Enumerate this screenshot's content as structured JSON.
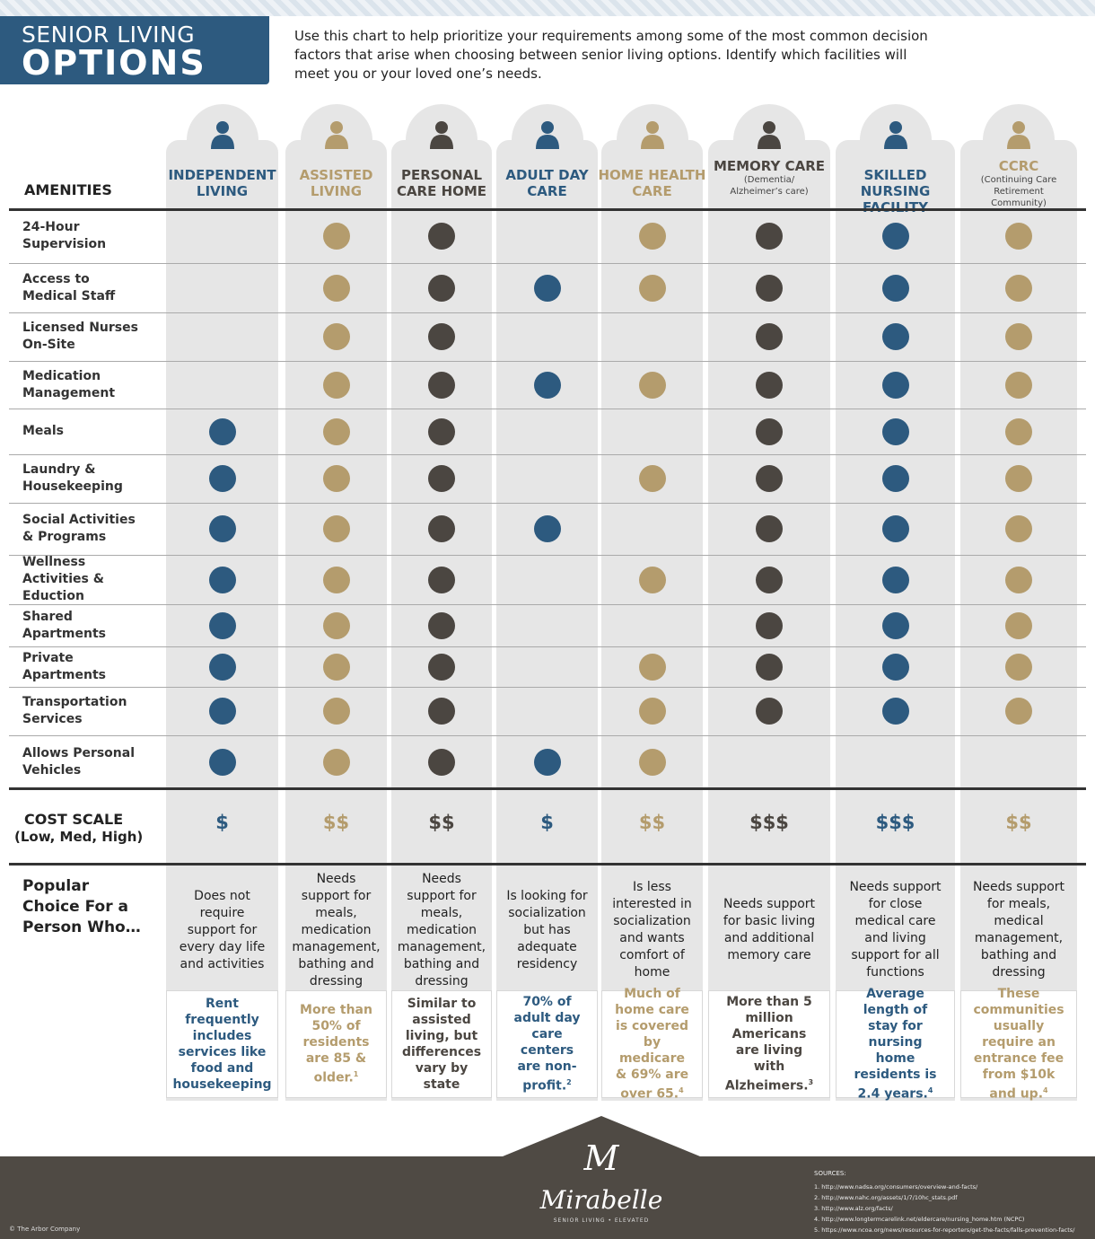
{
  "header": {
    "title_line1": "SENIOR LIVING",
    "title_line2": "OPTIONS",
    "intro": "Use this chart to help prioritize your requirements among some of the most common decision factors that arise when choosing between senior living options. Identify which facilities will meet you or your loved one’s needs."
  },
  "table": {
    "amenities_heading": "AMENITIES",
    "cost_heading_line1": "COST SCALE",
    "cost_heading_line2": "(Low, Med, High)",
    "popular_heading": "Popular Choice For a Person Who…",
    "columns": [
      {
        "name": "INDEPENDENT LIVING",
        "color": "#2d5a7f",
        "cost": "$",
        "popular": "Does not require support for every day life and activities",
        "fact": "Rent frequently includes services like food and housekeeping"
      },
      {
        "name": "ASSISTED LIVING",
        "color": "#b49c6d",
        "cost": "$$",
        "popular": "Needs support for meals, medication management, bathing and dressing",
        "fact": "More than 50% of residents are 85 & older.",
        "fact_note": "1"
      },
      {
        "name": "PERSONAL CARE HOME",
        "color": "#4b4641",
        "cost": "$$",
        "popular": "Needs support for meals, medication management, bathing and dressing",
        "fact": "Similar to assisted living, but differences vary by state"
      },
      {
        "name": "ADULT DAY CARE",
        "color": "#2d5a7f",
        "cost": "$",
        "popular": "Is looking for socialization but has adequate residency",
        "fact": "70% of adult day care centers are non-profit.",
        "fact_note": "2"
      },
      {
        "name": "HOME HEALTH CARE",
        "color": "#b49c6d",
        "cost": "$$",
        "popular": "Is less interested in socialization and wants comfort of home",
        "fact": "Much of home care is covered by medicare & 69% are over 65.",
        "fact_note": "4"
      },
      {
        "name": "MEMORY CARE",
        "note": "(Dementia/ Alzheimer’s care)",
        "color": "#4b4641",
        "cost": "$$$",
        "popular": "Needs support for basic living and additional memory care",
        "fact": "More than 5 million Americans are living with Alzheimers.",
        "fact_note": "3"
      },
      {
        "name": "SKILLED NURSING FACILITY",
        "color": "#2d5a7f",
        "cost": "$$$",
        "popular": "Needs support for close medical care and living support for all functions",
        "fact": "Average length of stay for nursing home residents is 2.4 years.",
        "fact_note": "4"
      },
      {
        "name": "CCRC",
        "note": "(Continuing Care Retirement Community)",
        "color": "#b49c6d",
        "cost": "$$",
        "popular": "Needs support for meals, medical management, bathing and dressing",
        "fact": "These communities usually require an entrance fee from $10k and up.",
        "fact_note": "4"
      }
    ],
    "rows": [
      {
        "label": "24-Hour Supervision",
        "marks": [
          false,
          true,
          true,
          false,
          true,
          true,
          true,
          true
        ]
      },
      {
        "label": "Access to Medical Staff",
        "marks": [
          false,
          true,
          true,
          true,
          true,
          true,
          true,
          true
        ]
      },
      {
        "label": "Licensed Nurses On-Site",
        "marks": [
          false,
          true,
          true,
          false,
          false,
          true,
          true,
          true
        ]
      },
      {
        "label": "Medication Management",
        "marks": [
          false,
          true,
          true,
          true,
          true,
          true,
          true,
          true
        ]
      },
      {
        "label": "Meals",
        "marks": [
          true,
          true,
          true,
          false,
          false,
          true,
          true,
          true
        ]
      },
      {
        "label": "Laundry & Housekeeping",
        "marks": [
          true,
          true,
          true,
          false,
          true,
          true,
          true,
          true
        ]
      },
      {
        "label": "Social Activities & Programs",
        "marks": [
          true,
          true,
          true,
          true,
          false,
          true,
          true,
          true
        ]
      },
      {
        "label": "Wellness Activities & Eduction",
        "marks": [
          true,
          true,
          true,
          false,
          true,
          true,
          true,
          true
        ]
      },
      {
        "label": "Shared Apartments",
        "marks": [
          true,
          true,
          true,
          false,
          false,
          true,
          true,
          true
        ]
      },
      {
        "label": "Private Apartments",
        "marks": [
          true,
          true,
          true,
          false,
          true,
          true,
          true,
          true
        ]
      },
      {
        "label": "Transportation Services",
        "marks": [
          true,
          true,
          true,
          false,
          true,
          true,
          true,
          true
        ]
      },
      {
        "label": "Allows Personal Vehicles",
        "marks": [
          true,
          true,
          true,
          true,
          true,
          false,
          false,
          false
        ]
      }
    ]
  },
  "footer": {
    "copyright": "© The Arbor Company",
    "monogram": "M",
    "brand": "Mirabelle",
    "tagline": "SENIOR LIVING • ELEVATED",
    "sources_heading": "SOURCES:",
    "sources": [
      "1. http://www.nadsa.org/consumers/overview-and-facts/",
      "2. http://www.nahc.org/assets/1/7/10hc_stats.pdf",
      "3. http://www.alz.org/facts/",
      "4. http://www.longtermcarelink.net/eldercare/nursing_home.htm (NCPC)",
      "5. https://www.ncoa.org/news/resources-for-reporters/get-the-facts/falls-prevention-facts/"
    ]
  }
}
